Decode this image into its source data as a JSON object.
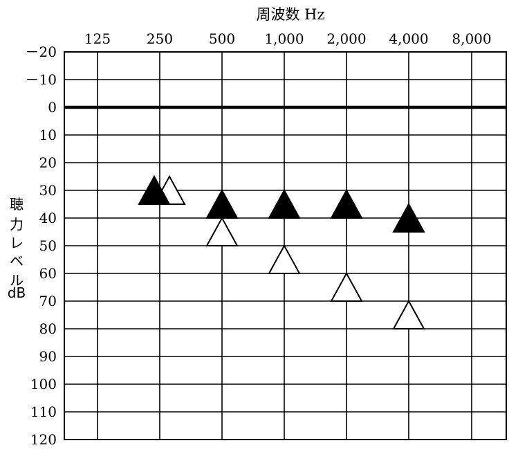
{
  "chart_data": {
    "type": "scatter",
    "xlabel": "周波数 Hz",
    "ylabel": [
      "聴",
      "力",
      "レ",
      "ベ",
      "ル",
      "dB"
    ],
    "x_ticks": [
      "125",
      "250",
      "500",
      "1,000",
      "2,000",
      "4,000",
      "8,000"
    ],
    "y_ticks": [
      "－20",
      "－10",
      "0",
      "10",
      "20",
      "30",
      "40",
      "50",
      "60",
      "70",
      "80",
      "90",
      "100",
      "110",
      "120"
    ],
    "ylim": [
      -20,
      120
    ],
    "y_inverted": true,
    "grid": true,
    "series": [
      {
        "marker": "filled-triangle",
        "color": "#000000",
        "points": [
          {
            "x": 250,
            "y": 30
          },
          {
            "x": 500,
            "y": 35
          },
          {
            "x": 1000,
            "y": 35
          },
          {
            "x": 2000,
            "y": 35
          },
          {
            "x": 4000,
            "y": 40
          }
        ]
      },
      {
        "marker": "open-triangle",
        "color": "#000000",
        "points": [
          {
            "x": 250,
            "y": 30
          },
          {
            "x": 500,
            "y": 45
          },
          {
            "x": 1000,
            "y": 55
          },
          {
            "x": 2000,
            "y": 65
          },
          {
            "x": 4000,
            "y": 75
          }
        ]
      }
    ]
  }
}
